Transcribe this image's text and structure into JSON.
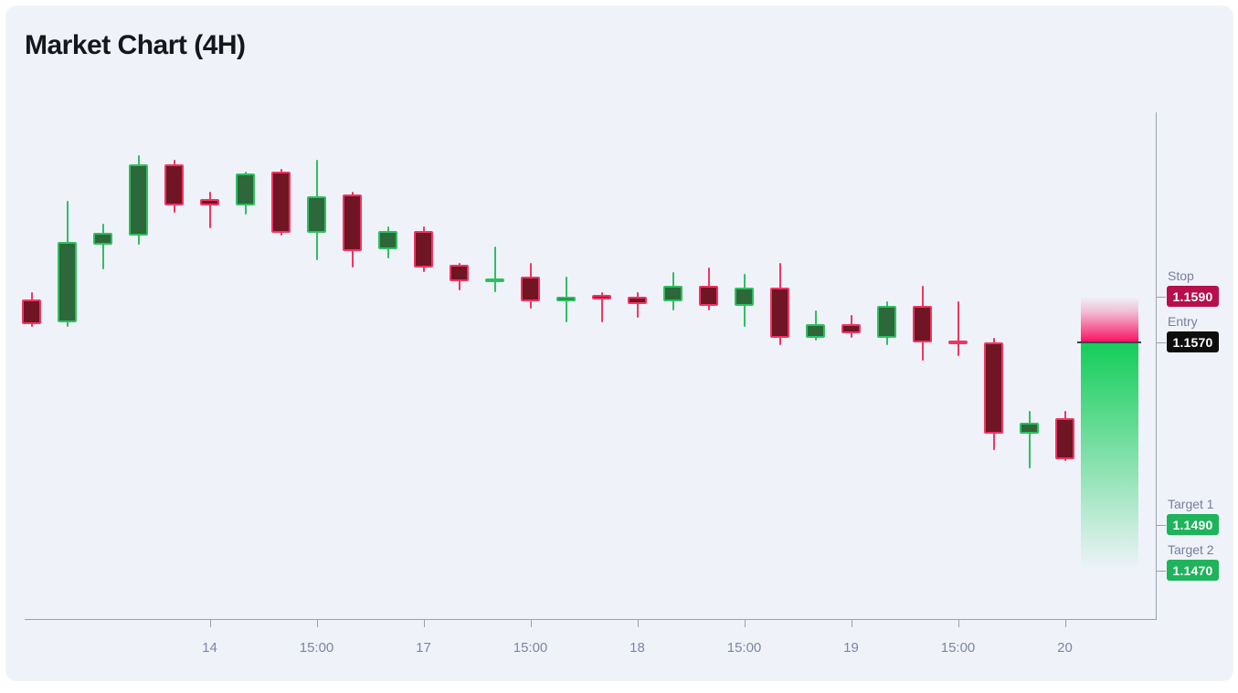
{
  "title": "Market Chart (4H)",
  "colors": {
    "page_bg": "#ffffff",
    "card_bg": "#eff3f9",
    "title_text": "#14171c",
    "axis": "#9aa0ae",
    "tick_label": "#7d84a3",
    "level_label": "#767d9e",
    "badge_text": "#ffffff",
    "bull_fill": "#2c6839",
    "bull_border": "#2fbf61",
    "bear_fill": "#701523",
    "bear_border": "#f13562",
    "stop_badge_bg": "#b60f4c",
    "entry_badge_bg": "#0d0d0d",
    "target_badge_bg": "#1fb35b",
    "risk_zone": "#fb0f5f",
    "reward_zone": "#13cd59",
    "entry_line": "#3f434e"
  },
  "levels": [
    {
      "name": "Stop",
      "price": "1.1590",
      "value": 1.159,
      "kind": "stop"
    },
    {
      "name": "Entry",
      "price": "1.1570",
      "value": 1.157,
      "kind": "entry"
    },
    {
      "name": "Target 1",
      "price": "1.1490",
      "value": 1.149,
      "kind": "target"
    },
    {
      "name": "Target 2",
      "price": "1.1470",
      "value": 1.147,
      "kind": "target"
    }
  ],
  "chart_data": {
    "type": "candlestick",
    "title": "Market Chart (4H)",
    "timeframe": "4H",
    "ylim": [
      1.146,
      1.167
    ],
    "grid": false,
    "x_axis_ticks": [
      {
        "candle_index": 5,
        "label": "14"
      },
      {
        "candle_index": 8,
        "label": "15:00"
      },
      {
        "candle_index": 11,
        "label": "17"
      },
      {
        "candle_index": 14,
        "label": "15:00"
      },
      {
        "candle_index": 17,
        "label": "18"
      },
      {
        "candle_index": 20,
        "label": "15:00"
      },
      {
        "candle_index": 23,
        "label": "19"
      },
      {
        "candle_index": 26,
        "label": "15:00"
      },
      {
        "candle_index": 29,
        "label": "20"
      }
    ],
    "candles_ohlc": [
      {
        "o": 1.1589,
        "h": 1.1592,
        "l": 1.1577,
        "c": 1.1578
      },
      {
        "o": 1.1579,
        "h": 1.1632,
        "l": 1.1577,
        "c": 1.1614
      },
      {
        "o": 1.1613,
        "h": 1.1622,
        "l": 1.1602,
        "c": 1.1618
      },
      {
        "o": 1.1617,
        "h": 1.1652,
        "l": 1.1613,
        "c": 1.1648
      },
      {
        "o": 1.1648,
        "h": 1.165,
        "l": 1.1627,
        "c": 1.163
      },
      {
        "o": 1.1633,
        "h": 1.1636,
        "l": 1.162,
        "c": 1.163
      },
      {
        "o": 1.163,
        "h": 1.1645,
        "l": 1.1626,
        "c": 1.1644
      },
      {
        "o": 1.1645,
        "h": 1.1646,
        "l": 1.1617,
        "c": 1.1618
      },
      {
        "o": 1.1618,
        "h": 1.165,
        "l": 1.1606,
        "c": 1.1634
      },
      {
        "o": 1.1635,
        "h": 1.1636,
        "l": 1.1603,
        "c": 1.161
      },
      {
        "o": 1.1611,
        "h": 1.1621,
        "l": 1.1607,
        "c": 1.1619
      },
      {
        "o": 1.1619,
        "h": 1.1621,
        "l": 1.1601,
        "c": 1.1603
      },
      {
        "o": 1.1604,
        "h": 1.1605,
        "l": 1.1593,
        "c": 1.1597
      },
      {
        "o": 1.1597,
        "h": 1.1612,
        "l": 1.1592,
        "c": 1.1598
      },
      {
        "o": 1.1599,
        "h": 1.1605,
        "l": 1.1585,
        "c": 1.1588
      },
      {
        "o": 1.1588,
        "h": 1.1599,
        "l": 1.1579,
        "c": 1.159
      },
      {
        "o": 1.1591,
        "h": 1.1592,
        "l": 1.1579,
        "c": 1.1589
      },
      {
        "o": 1.159,
        "h": 1.1592,
        "l": 1.1581,
        "c": 1.1587
      },
      {
        "o": 1.1588,
        "h": 1.1601,
        "l": 1.1584,
        "c": 1.1595
      },
      {
        "o": 1.1595,
        "h": 1.1603,
        "l": 1.1584,
        "c": 1.1586
      },
      {
        "o": 1.1586,
        "h": 1.16,
        "l": 1.1577,
        "c": 1.1594
      },
      {
        "o": 1.1594,
        "h": 1.1605,
        "l": 1.1569,
        "c": 1.1572
      },
      {
        "o": 1.1572,
        "h": 1.1584,
        "l": 1.1571,
        "c": 1.1578
      },
      {
        "o": 1.1578,
        "h": 1.1582,
        "l": 1.1572,
        "c": 1.1574
      },
      {
        "o": 1.1572,
        "h": 1.1588,
        "l": 1.1569,
        "c": 1.1586
      },
      {
        "o": 1.1586,
        "h": 1.1595,
        "l": 1.1562,
        "c": 1.157
      },
      {
        "o": 1.1571,
        "h": 1.1588,
        "l": 1.1564,
        "c": 1.157
      },
      {
        "o": 1.157,
        "h": 1.1572,
        "l": 1.1523,
        "c": 1.153
      },
      {
        "o": 1.153,
        "h": 1.154,
        "l": 1.1515,
        "c": 1.1535
      },
      {
        "o": 1.1537,
        "h": 1.154,
        "l": 1.1518,
        "c": 1.1519
      }
    ],
    "zones": [
      {
        "kind": "risk",
        "top_price": 1.159,
        "bottom_price": 1.157
      },
      {
        "kind": "reward",
        "top_price": 1.157,
        "bottom_price": 1.147
      }
    ]
  }
}
